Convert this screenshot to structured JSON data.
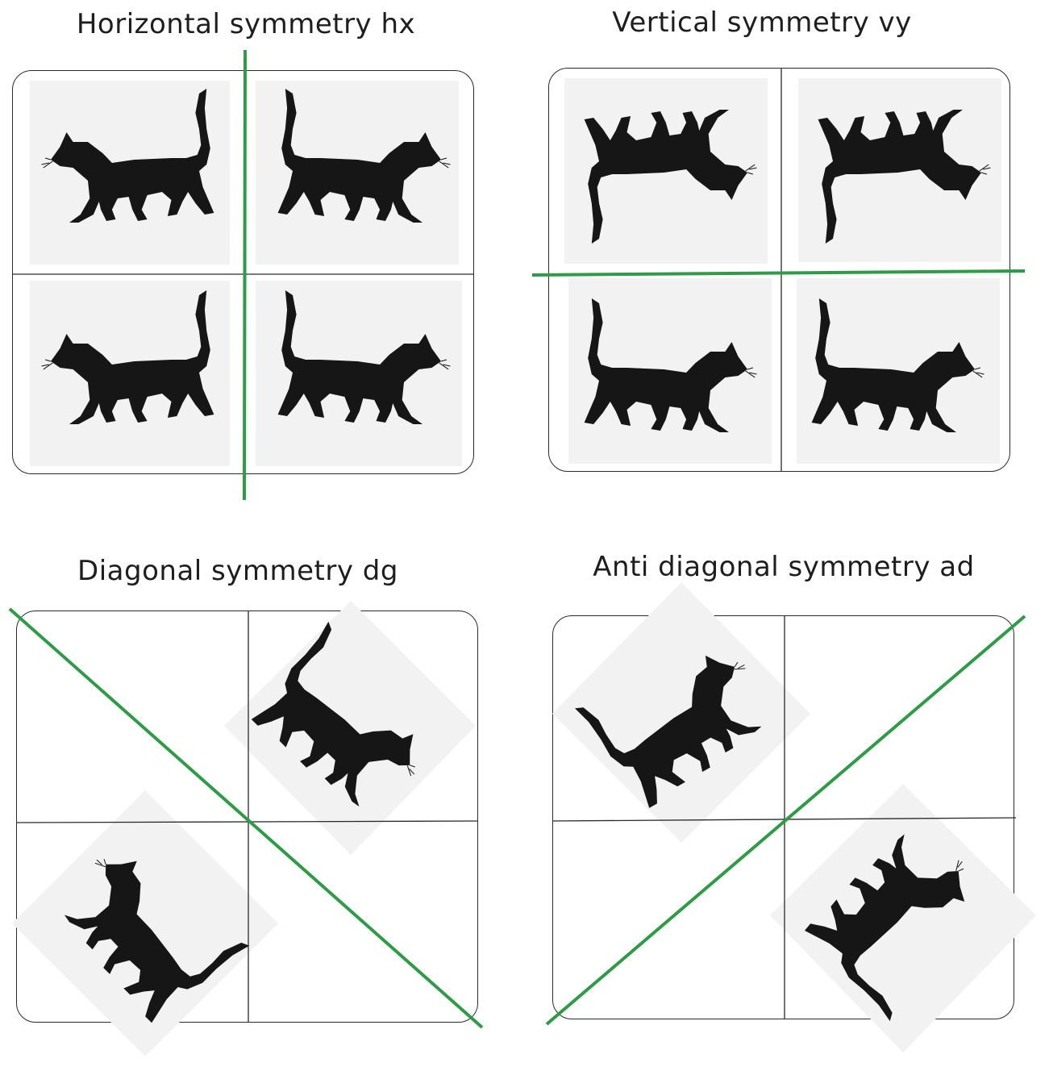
{
  "panels": [
    {
      "title": "Horizontal symmetry hx",
      "symmetry": "horizontal",
      "axis_color": "#2e9b46"
    },
    {
      "title": "Vertical symmetry vy",
      "symmetry": "vertical",
      "axis_color": "#2e9b46"
    },
    {
      "title": "Diagonal symmetry dg",
      "symmetry": "diagonal",
      "axis_color": "#2e9b46"
    },
    {
      "title": "Anti diagonal symmetry ad",
      "symmetry": "anti-diagonal",
      "axis_color": "#2e9b46"
    }
  ],
  "colors": {
    "cat": "#161616",
    "tile_background": "#f2f2f2",
    "grid_line": "#2a2a2a"
  }
}
